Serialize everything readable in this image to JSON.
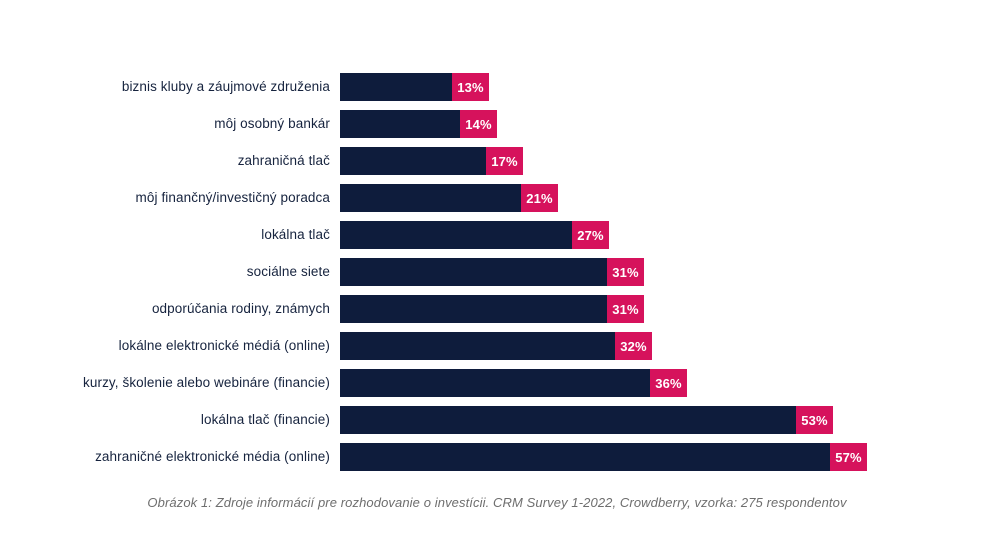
{
  "page": {
    "background_color": "#ffffff"
  },
  "chart_data": {
    "type": "bar",
    "orientation": "horizontal",
    "categories": [
      "biznis kluby a záujmové združenia",
      "môj osobný bankár",
      "zahraničná tlač",
      "môj finančný/investičný poradca",
      "lokálna tlač",
      "sociálne siete",
      "odporúčania rodiny, známych",
      "lokálne elektronické médiá (online)",
      "kurzy, školenie alebo webináre (financie)",
      "lokálna tlač (financie)",
      "zahraničné elektronické média (online)"
    ],
    "values": [
      13,
      14,
      17,
      21,
      27,
      31,
      31,
      32,
      36,
      53,
      57
    ],
    "value_suffix": "%",
    "value_labels": [
      "13%",
      "14%",
      "17%",
      "21%",
      "27%",
      "31%",
      "31%",
      "32%",
      "36%",
      "53%",
      "57%"
    ],
    "xlim": [
      0,
      60
    ],
    "grid": false,
    "legend": false,
    "title": "",
    "caption": "Obrázok 1: Zdroje informácií pre rozhodovanie o investícii. CRM Survey 1-2022, Crowdberry, vzorka: 275 respondentov",
    "colors": {
      "bar": "#0e1c3c",
      "value_badge_bg": "#d6125c",
      "value_badge_text": "#ffffff",
      "category_label": "#16233e",
      "caption_text": "#6e6e6e"
    }
  }
}
